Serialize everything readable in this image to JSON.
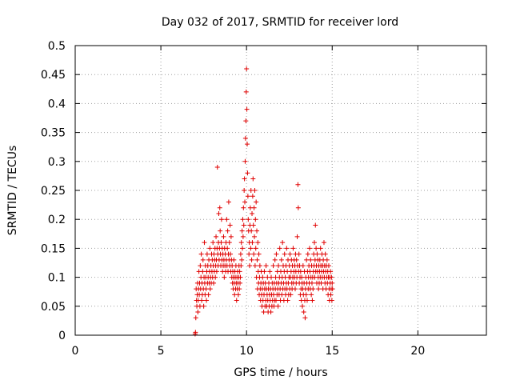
{
  "chart_data": {
    "type": "scatter",
    "title": "Day 032 of 2017, SRMTID for receiver lord",
    "xlabel": "GPS time / hours",
    "ylabel": "SRMTID / TECUs",
    "xlim": [
      0,
      24
    ],
    "ylim": [
      0,
      0.5
    ],
    "x_ticks": [
      0,
      5,
      10,
      15,
      20
    ],
    "x_tick_labels": [
      "0",
      "5",
      "10",
      "15",
      "20"
    ],
    "y_ticks": [
      0,
      0.05,
      0.1,
      0.15,
      0.2,
      0.25,
      0.3,
      0.35,
      0.4,
      0.45,
      0.5
    ],
    "y_tick_labels": [
      "0",
      "0.05",
      "0.1",
      "0.15",
      "0.2",
      "0.25",
      "0.3",
      "0.35",
      "0.4",
      "0.45",
      "0.5"
    ],
    "grid": true,
    "marker": "plus",
    "color": "#e00000",
    "x_start": 7.0,
    "x_step": 0.02,
    "series": [
      {
        "values": [
          0.002,
          0.005,
          0.03,
          0.08,
          0.06,
          0.05,
          0.07,
          0.09,
          0.04,
          0.06,
          0.08,
          0.11,
          0.07,
          0.09,
          0.05,
          0.12,
          0.08,
          0.1,
          0.14,
          0.06,
          0.09,
          0.07,
          0.11,
          0.13,
          0.08,
          0.05,
          0.1,
          0.16,
          0.09,
          0.07,
          0.12,
          0.1,
          0.08,
          0.06,
          0.11,
          0.14,
          0.09,
          0.12,
          0.1,
          0.07,
          0.13,
          0.09,
          0.11,
          0.15,
          0.08,
          0.1,
          0.12,
          0.09,
          0.14,
          0.11,
          0.13,
          0.1,
          0.16,
          0.12,
          0.09,
          0.14,
          0.11,
          0.13,
          0.15,
          0.1,
          0.12,
          0.17,
          0.13,
          0.11,
          0.15,
          0.29,
          0.14,
          0.12,
          0.16,
          0.21,
          0.13,
          0.15,
          0.22,
          0.18,
          0.14,
          0.12,
          0.16,
          0.2,
          0.13,
          0.15,
          0.11,
          0.14,
          0.12,
          0.17,
          0.13,
          0.1,
          0.15,
          0.12,
          0.14,
          0.11,
          0.16,
          0.13,
          0.2,
          0.12,
          0.15,
          0.18,
          0.11,
          0.14,
          0.23,
          0.13,
          0.16,
          0.12,
          0.19,
          0.14,
          0.11,
          0.17,
          0.13,
          0.1,
          0.12,
          0.09,
          0.11,
          0.08,
          0.1,
          0.13,
          0.09,
          0.07,
          0.11,
          0.1,
          0.08,
          0.12,
          0.09,
          0.06,
          0.1,
          0.08,
          0.11,
          0.09,
          0.07,
          0.1,
          0.12,
          0.08,
          0.11,
          0.09,
          0.1,
          0.14,
          0.12,
          0.16,
          0.13,
          0.18,
          0.15,
          0.2,
          0.17,
          0.22,
          0.19,
          0.25,
          0.27,
          0.23,
          0.3,
          0.34,
          0.37,
          0.42,
          0.46,
          0.39,
          0.33,
          0.28,
          0.24,
          0.2,
          0.18,
          0.14,
          0.16,
          0.12,
          0.19,
          0.22,
          0.15,
          0.25,
          0.18,
          0.13,
          0.21,
          0.16,
          0.24,
          0.27,
          0.19,
          0.14,
          0.22,
          0.17,
          0.25,
          0.12,
          0.2,
          0.15,
          0.23,
          0.1,
          0.18,
          0.13,
          0.08,
          0.16,
          0.11,
          0.09,
          0.14,
          0.07,
          0.1,
          0.12,
          0.08,
          0.06,
          0.09,
          0.11,
          0.07,
          0.05,
          0.08,
          0.1,
          0.06,
          0.09,
          0.04,
          0.07,
          0.11,
          0.08,
          0.05,
          0.09,
          0.06,
          0.12,
          0.08,
          0.05,
          0.07,
          0.1,
          0.06,
          0.04,
          0.08,
          0.09,
          0.05,
          0.07,
          0.11,
          0.06,
          0.08,
          0.04,
          0.1,
          0.07,
          0.05,
          0.09,
          0.06,
          0.08,
          0.12,
          0.07,
          0.05,
          0.09,
          0.06,
          0.13,
          0.08,
          0.1,
          0.06,
          0.14,
          0.09,
          0.07,
          0.11,
          0.08,
          0.05,
          0.12,
          0.09,
          0.07,
          0.1,
          0.15,
          0.08,
          0.06,
          0.11,
          0.09,
          0.13,
          0.07,
          0.1,
          0.16,
          0.08,
          0.12,
          0.09,
          0.06,
          0.11,
          0.14,
          0.08,
          0.1,
          0.07,
          0.12,
          0.09,
          0.15,
          0.08,
          0.11,
          0.06,
          0.13,
          0.09,
          0.07,
          0.1,
          0.12,
          0.08,
          0.14,
          0.1,
          0.07,
          0.11,
          0.13,
          0.09,
          0.08,
          0.12,
          0.1,
          0.15,
          0.09,
          0.11,
          0.13,
          0.1,
          0.12,
          0.08,
          0.14,
          0.11,
          0.09,
          0.13,
          0.1,
          0.17,
          0.12,
          0.26,
          0.22,
          0.11,
          0.14,
          0.09,
          0.12,
          0.1,
          0.07,
          0.11,
          0.08,
          0.06,
          0.1,
          0.09,
          0.05,
          0.08,
          0.12,
          0.07,
          0.04,
          0.09,
          0.11,
          0.06,
          0.03,
          0.08,
          0.1,
          0.07,
          0.13,
          0.09,
          0.06,
          0.11,
          0.14,
          0.08,
          0.1,
          0.12,
          0.09,
          0.15,
          0.11,
          0.08,
          0.13,
          0.1,
          0.07,
          0.12,
          0.09,
          0.06,
          0.1,
          0.08,
          0.11,
          0.14,
          0.12,
          0.16,
          0.1,
          0.13,
          0.19,
          0.11,
          0.15,
          0.12,
          0.09,
          0.14,
          0.11,
          0.13,
          0.1,
          0.08,
          0.12,
          0.09,
          0.11,
          0.13,
          0.1,
          0.15,
          0.12,
          0.09,
          0.11,
          0.14,
          0.1,
          0.12,
          0.08,
          0.13,
          0.11,
          0.16,
          0.1,
          0.12,
          0.09,
          0.14,
          0.11,
          0.08,
          0.12,
          0.1,
          0.13,
          0.09,
          0.11,
          0.07,
          0.1,
          0.12,
          0.08,
          0.06,
          0.1,
          0.09,
          0.11,
          0.07,
          0.08,
          0.1,
          0.06,
          0.09,
          0.08
        ]
      }
    ]
  }
}
